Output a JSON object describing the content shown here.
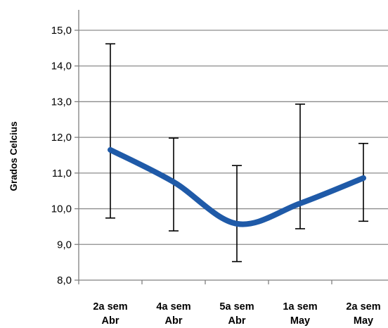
{
  "chart_data": {
    "type": "line",
    "title": "",
    "xlabel": "",
    "ylabel": "Grados Celcius",
    "categories": [
      [
        "2a sem",
        "Abr"
      ],
      [
        "4a sem",
        "Abr"
      ],
      [
        "5a sem",
        "Abr"
      ],
      [
        "1a sem",
        "May"
      ],
      [
        "2a sem",
        "May"
      ]
    ],
    "yticks": [
      "8,0",
      "9,0",
      "10,0",
      "11,0",
      "12,0",
      "13,0",
      "14,0",
      "15,0"
    ],
    "ylim": [
      8,
      15
    ],
    "grid": true,
    "series": [
      {
        "values": [
          11.65,
          10.75,
          9.58,
          10.15,
          10.86
        ],
        "error_low": [
          9.74,
          9.38,
          8.52,
          9.44,
          9.65
        ],
        "error_high": [
          14.62,
          11.98,
          11.21,
          12.93,
          11.83
        ],
        "color": "#1f5aa8"
      }
    ],
    "gridline_color": "#8c8c8c",
    "axis_color": "#808080"
  }
}
